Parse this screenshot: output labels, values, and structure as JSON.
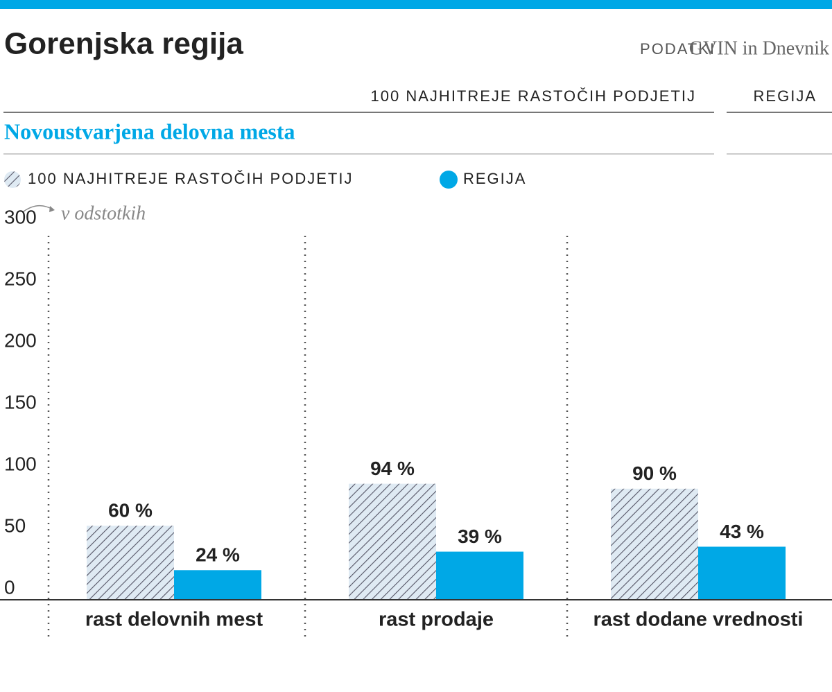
{
  "chart_data": {
    "type": "bar",
    "title": "Gorenjska regija",
    "source_label": "PODATKI",
    "source": "GVIN in Dnevnik",
    "column_headers": [
      "100 NAJHITREJE RASTOČIH PODJETIJ",
      "REGIJA"
    ],
    "subtitle": "Novoustvarjena delovna mesta",
    "unit_note": "v odstotkih",
    "categories": [
      "rast delovnih mest",
      "rast prodaje",
      "rast dodane vrednosti"
    ],
    "series": [
      {
        "name": "100 NAJHITREJE RASTOČIH PODJETIJ",
        "color": "#dfeaf3",
        "values": [
          60,
          94,
          90
        ],
        "value_labels": [
          "60 %",
          "94 %",
          "90 %"
        ]
      },
      {
        "name": "REGIJA",
        "color": "#00a8e6",
        "values": [
          24,
          39,
          43
        ],
        "value_labels": [
          "24 %",
          "39 %",
          "43 %"
        ]
      }
    ],
    "ylim": [
      0,
      300
    ],
    "yticks": [
      0,
      50,
      100,
      150,
      200,
      250,
      300
    ]
  }
}
